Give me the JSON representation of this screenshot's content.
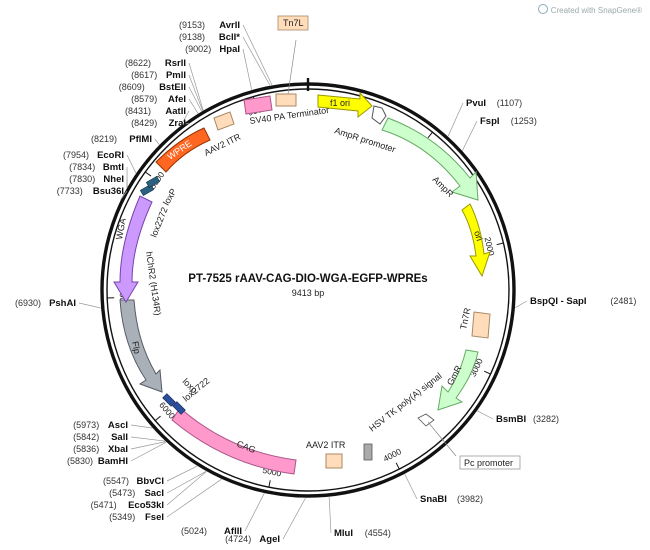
{
  "header": {
    "created_with": "Created with SnapGene®",
    "logo_icon": "snapgene-logo-icon"
  },
  "plasmid": {
    "name": "PT-7525 rAAV-CAG-DIO-WGA-EGFP-WPREs",
    "length": "9413 bp",
    "total_bp": 9413
  },
  "sites": [
    {
      "name": "AvrII",
      "pos": "(9153)",
      "bp": 9153
    },
    {
      "name": "BclI*",
      "pos": "(9138)",
      "bp": 9138
    },
    {
      "name": "HpaI",
      "pos": "(9002)",
      "bp": 9002
    },
    {
      "name": "RsrII",
      "pos": "(8622)",
      "bp": 8622
    },
    {
      "name": "PmlI",
      "pos": "(8617)",
      "bp": 8617
    },
    {
      "name": "BstEII",
      "pos": "(8609)",
      "bp": 8609
    },
    {
      "name": "AfeI",
      "pos": "(8579)",
      "bp": 8579
    },
    {
      "name": "AatII",
      "pos": "(8431)",
      "bp": 8431
    },
    {
      "name": "ZraI",
      "pos": "(8429)",
      "bp": 8429
    },
    {
      "name": "PflMI",
      "pos": "(8219)",
      "bp": 8219
    },
    {
      "name": "EcoRI",
      "pos": "(7954)",
      "bp": 7954
    },
    {
      "name": "BmtI",
      "pos": "(7834)",
      "bp": 7834
    },
    {
      "name": "NheI",
      "pos": "(7830)",
      "bp": 7830
    },
    {
      "name": "Bsu36I",
      "pos": "(7733)",
      "bp": 7733
    },
    {
      "name": "PshAI",
      "pos": "(6930)",
      "bp": 6930
    },
    {
      "name": "AscI",
      "pos": "(5973)",
      "bp": 5973
    },
    {
      "name": "SalI",
      "pos": "(5842)",
      "bp": 5842
    },
    {
      "name": "XbaI",
      "pos": "(5836)",
      "bp": 5836
    },
    {
      "name": "BamHI",
      "pos": "(5830)",
      "bp": 5830
    },
    {
      "name": "BbvCI",
      "pos": "(5547)",
      "bp": 5547
    },
    {
      "name": "SacI",
      "pos": "(5473)",
      "bp": 5473
    },
    {
      "name": "Eco53kI",
      "pos": "(5471)",
      "bp": 5471
    },
    {
      "name": "FseI",
      "pos": "(5349)",
      "bp": 5349
    },
    {
      "name": "AflII",
      "pos": "(5024)",
      "bp": 5024
    },
    {
      "name": "AgeI",
      "pos": "(4724)",
      "bp": 4724
    },
    {
      "name": "MluI",
      "pos": "(4554)",
      "bp": 4554
    },
    {
      "name": "SnaBI",
      "pos": "(3982)",
      "bp": 3982
    },
    {
      "name": "BsmBI",
      "pos": "(3282)",
      "bp": 3282
    },
    {
      "name": "BspQI - SapI",
      "pos": "(2481)",
      "bp": 2481
    },
    {
      "name": "FspI",
      "pos": "(1253)",
      "bp": 1253
    },
    {
      "name": "PvuI",
      "pos": "(1107)",
      "bp": 1107
    }
  ],
  "ticks": [
    "1000",
    "2000",
    "3000",
    "4000",
    "5000",
    "6000",
    "7000",
    "8000",
    "9000"
  ],
  "features": [
    {
      "label": "f1 ori",
      "color": "#ffff00",
      "stroke": "#999900"
    },
    {
      "label": "AmpR",
      "color": "#ccffcc",
      "stroke": "#66aa66"
    },
    {
      "label": "ori",
      "color": "#ffff00",
      "stroke": "#999900"
    },
    {
      "label": "Tn7R",
      "color": "#ffddbb",
      "stroke": "#aa8866"
    },
    {
      "label": "GmR",
      "color": "#ccffcc",
      "stroke": "#66aa66"
    },
    {
      "label": "CAG",
      "color": "#ff99cc",
      "stroke": "#aa5588"
    },
    {
      "label": "Flp",
      "color": "#aab0b8",
      "stroke": "#555a66"
    },
    {
      "label": "hChR2 (H134R)",
      "color": "#ffffff",
      "stroke": "#ffffff"
    },
    {
      "label": "WGA",
      "color": "#cc99ff",
      "stroke": "#7744aa"
    },
    {
      "label": "lox2272",
      "color": "#2a6080",
      "stroke": "#113344"
    },
    {
      "label": "loxP",
      "color": "#2a6080",
      "stroke": "#113344"
    },
    {
      "label": "WPRE",
      "color": "#ff6622",
      "stroke": "#993300"
    },
    {
      "label": "AAV2 ITR",
      "color": "#ffddbb",
      "stroke": "#aa8866"
    },
    {
      "label": "SV40 PA Terminator",
      "color": "#ff99cc",
      "stroke": "#aa5588"
    },
    {
      "label": "Tn7L",
      "color": "#ffddbb",
      "stroke": "#aa8866"
    },
    {
      "label": "AmpR promoter",
      "color": "#ffffff",
      "stroke": "#555"
    },
    {
      "label": "HSV TK poly(A) signal",
      "color": "#aaaaaa",
      "stroke": "#555"
    },
    {
      "label": "Pc promoter",
      "color": "#ffffff",
      "stroke": "#555"
    },
    {
      "label": "AAV2 ITR",
      "color": "#ffddbb",
      "stroke": "#aa8866"
    },
    {
      "label": "loxp",
      "color": "#2a4f9e",
      "stroke": "#112244"
    },
    {
      "label": "lox2722",
      "color": "#2a4f9e",
      "stroke": "#112244"
    }
  ]
}
